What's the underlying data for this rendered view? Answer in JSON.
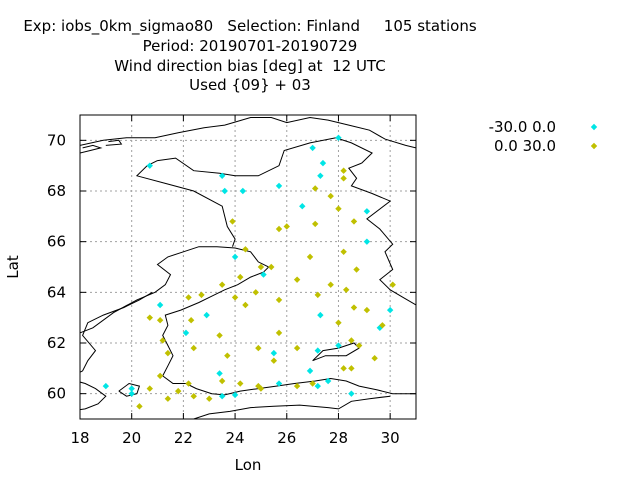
{
  "header": {
    "line1": "Exp: iobs_0km_sigmao80   Selection: Finland     105 stations",
    "line2": "Period: 20190701-20190729",
    "line3": "Wind direction bias [deg] at  12 UTC",
    "line4": "Used {09} + 03"
  },
  "colors": {
    "negative": "#00e5e5",
    "positive": "#c0c000",
    "coastline": "#000000",
    "grid": "#a0a0a0"
  },
  "chart_data": {
    "type": "scatter",
    "xlabel": "Lon",
    "ylabel": "Lat",
    "xlim": [
      18,
      31
    ],
    "ylim": [
      59,
      71
    ],
    "xticks": [
      18,
      20,
      22,
      24,
      26,
      28,
      30
    ],
    "yticks": [
      60,
      62,
      64,
      66,
      68,
      70
    ],
    "grid": true,
    "legend_position": "top-right",
    "series": [
      {
        "name": "-30.0 0.0",
        "color": "#00e5e5",
        "points": [
          [
            20.7,
            69.0
          ],
          [
            23.5,
            68.6
          ],
          [
            23.6,
            68.0
          ],
          [
            24.3,
            68.0
          ],
          [
            25.7,
            68.2
          ],
          [
            27.0,
            69.7
          ],
          [
            27.4,
            69.1
          ],
          [
            27.3,
            68.6
          ],
          [
            28.0,
            70.1
          ],
          [
            26.6,
            67.4
          ],
          [
            29.1,
            67.2
          ],
          [
            29.1,
            66.0
          ],
          [
            24.0,
            65.4
          ],
          [
            25.1,
            64.7
          ],
          [
            21.1,
            63.5
          ],
          [
            22.1,
            62.4
          ],
          [
            22.9,
            63.1
          ],
          [
            27.3,
            63.1
          ],
          [
            29.6,
            62.6
          ],
          [
            30.0,
            63.3
          ],
          [
            27.2,
            61.7
          ],
          [
            28.0,
            61.9
          ],
          [
            25.5,
            61.6
          ],
          [
            26.9,
            60.9
          ],
          [
            23.4,
            60.8
          ],
          [
            19.0,
            60.3
          ],
          [
            20.0,
            60.2
          ],
          [
            20.0,
            60.0
          ],
          [
            23.5,
            59.9
          ],
          [
            24.0,
            59.95
          ],
          [
            25.7,
            60.4
          ],
          [
            27.2,
            60.3
          ],
          [
            27.6,
            60.5
          ],
          [
            28.5,
            60.0
          ]
        ]
      },
      {
        "name": "0.0 30.0",
        "color": "#c0c000",
        "points": [
          [
            28.2,
            68.8
          ],
          [
            28.2,
            68.5
          ],
          [
            27.1,
            68.1
          ],
          [
            27.7,
            67.8
          ],
          [
            28.0,
            67.3
          ],
          [
            28.6,
            66.8
          ],
          [
            23.9,
            66.8
          ],
          [
            25.7,
            66.5
          ],
          [
            26.0,
            66.6
          ],
          [
            27.1,
            66.7
          ],
          [
            28.2,
            65.6
          ],
          [
            24.4,
            65.7
          ],
          [
            25.0,
            65.0
          ],
          [
            25.4,
            65.0
          ],
          [
            26.9,
            65.4
          ],
          [
            24.2,
            64.6
          ],
          [
            28.7,
            64.9
          ],
          [
            23.5,
            64.3
          ],
          [
            24.8,
            64.0
          ],
          [
            26.4,
            64.5
          ],
          [
            27.7,
            64.3
          ],
          [
            28.3,
            64.1
          ],
          [
            30.1,
            64.3
          ],
          [
            24.0,
            63.8
          ],
          [
            24.4,
            63.5
          ],
          [
            25.7,
            63.7
          ],
          [
            27.2,
            63.9
          ],
          [
            22.2,
            63.8
          ],
          [
            22.7,
            63.9
          ],
          [
            20.7,
            63.0
          ],
          [
            21.1,
            62.9
          ],
          [
            22.3,
            62.9
          ],
          [
            28.6,
            63.4
          ],
          [
            29.1,
            63.3
          ],
          [
            29.7,
            62.7
          ],
          [
            23.4,
            62.3
          ],
          [
            25.7,
            62.4
          ],
          [
            28.0,
            62.8
          ],
          [
            21.2,
            62.1
          ],
          [
            22.4,
            61.8
          ],
          [
            24.9,
            61.8
          ],
          [
            26.4,
            61.8
          ],
          [
            28.5,
            62.1
          ],
          [
            28.8,
            61.9
          ],
          [
            21.4,
            61.6
          ],
          [
            23.7,
            61.5
          ],
          [
            25.5,
            61.3
          ],
          [
            29.4,
            61.4
          ],
          [
            21.1,
            60.7
          ],
          [
            28.2,
            61.0
          ],
          [
            28.5,
            61.0
          ],
          [
            20.7,
            60.2
          ],
          [
            21.4,
            59.8
          ],
          [
            21.8,
            60.1
          ],
          [
            22.2,
            60.4
          ],
          [
            22.4,
            59.9
          ],
          [
            23.0,
            59.8
          ],
          [
            23.5,
            60.5
          ],
          [
            24.2,
            60.4
          ],
          [
            24.9,
            60.3
          ],
          [
            25.0,
            60.2
          ],
          [
            26.4,
            60.3
          ],
          [
            27.0,
            60.4
          ],
          [
            20.3,
            59.5
          ]
        ]
      }
    ]
  }
}
